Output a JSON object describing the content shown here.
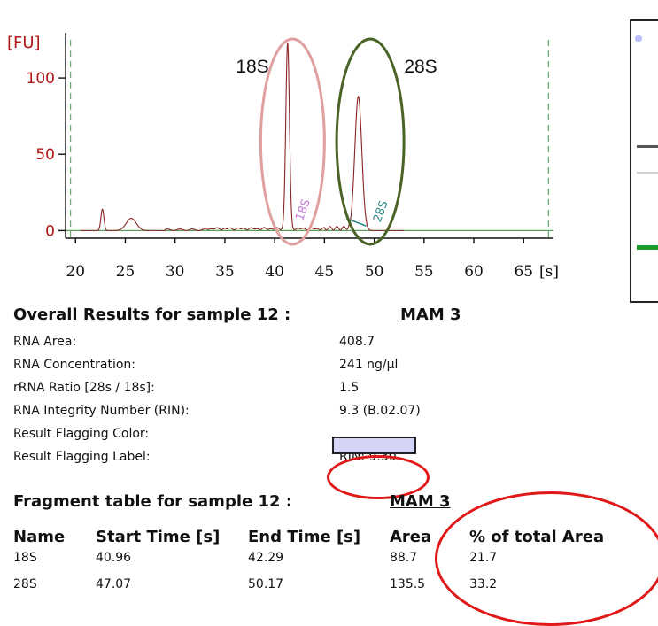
{
  "chart_data": {
    "type": "line",
    "ylabel": "[FU]",
    "xlabel": "[s]",
    "xlim": [
      19,
      68
    ],
    "ylim": [
      -5,
      125
    ],
    "x_ticks": [
      20,
      25,
      30,
      35,
      40,
      45,
      50,
      55,
      60,
      65
    ],
    "y_ticks": [
      0,
      50,
      100
    ],
    "marker_lines": [
      19.5,
      67.5
    ],
    "peaks": [
      {
        "x": 22.7,
        "height": 14,
        "width": 0.15
      },
      {
        "x": 25.6,
        "height": 8,
        "width": 0.5
      },
      {
        "x": 41.3,
        "height": 122,
        "width": 0.18
      },
      {
        "x": 48.4,
        "height": 88,
        "width": 0.35
      }
    ],
    "annotations": [
      {
        "label": "18S",
        "x": 41.8
      },
      {
        "label": "28S",
        "x": 49.6
      }
    ],
    "rotated_labels": [
      "18S",
      "28S"
    ]
  },
  "gel": {
    "band_colors": [
      "#555555",
      "#cfcfcf",
      "#1a9a2a"
    ]
  },
  "results": {
    "title": "Overall Results for sample 12  :",
    "sample": "MAM 3",
    "rows": [
      {
        "label": "RNA Area:",
        "value": "408.7"
      },
      {
        "label": "RNA Concentration:",
        "value": "241 ng/µl"
      },
      {
        "label": "rRNA Ratio [28s / 18s]:",
        "value": "1.5"
      },
      {
        "label": "RNA Integrity Number (RIN):",
        "value": "9.3    (B.02.07)"
      },
      {
        "label": "Result Flagging Color:",
        "value": ""
      },
      {
        "label": "Result Flagging Label:",
        "value": "RIN: 9.30"
      }
    ],
    "flag_color": "#d4d4f8"
  },
  "fragment": {
    "title": "Fragment table for sample 12  :",
    "sample": "MAM 3",
    "columns": [
      "Name",
      "Start Time [s]",
      "End Time [s]",
      "Area",
      "% of total Area"
    ],
    "rows": [
      [
        "18S",
        "40.96",
        "42.29",
        "88.7",
        "21.7"
      ],
      [
        "28S",
        "47.07",
        "50.17",
        "135.5",
        "33.2"
      ]
    ]
  }
}
